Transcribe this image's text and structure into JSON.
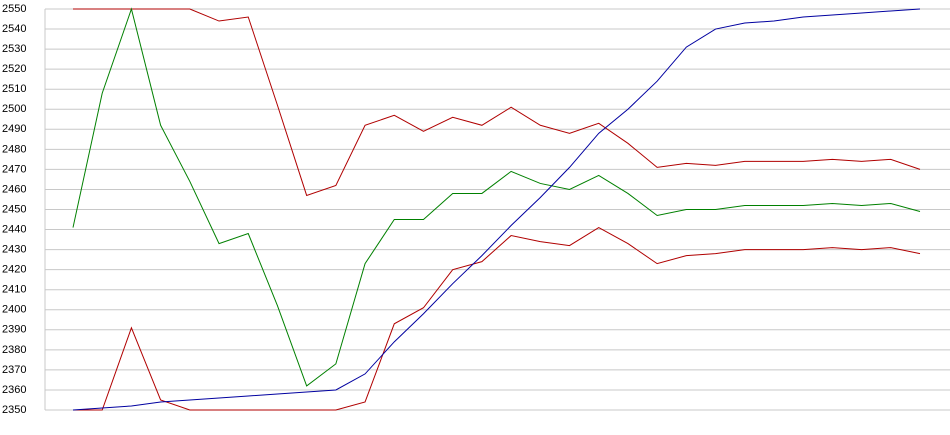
{
  "chart_data": {
    "type": "line",
    "categories": [
      null,
      null,
      null,
      null,
      null,
      null,
      null,
      null,
      null,
      null,
      null,
      null,
      null,
      null,
      null,
      null,
      null,
      null,
      null,
      null,
      null,
      null,
      null,
      null,
      null,
      null,
      null,
      null,
      null,
      null
    ],
    "series": [
      {
        "color": "#b00000",
        "values": [
          2550,
          2550,
          2550,
          2550,
          2550,
          2544,
          2546,
          2502,
          2457,
          2462,
          2492,
          2497,
          2489,
          2496,
          2492,
          2501,
          2492,
          2488,
          2493,
          2483,
          2471,
          2473,
          2472,
          2474,
          2474,
          2474,
          2475,
          2474,
          2475,
          2470
        ]
      },
      {
        "color": "#008000",
        "values": [
          2441,
          2508,
          2550,
          2492,
          2464,
          2433,
          2438,
          2402,
          2362,
          2373,
          2423,
          2445,
          2445,
          2458,
          2458,
          2469,
          2463,
          2460,
          2467,
          2458,
          2447,
          2450,
          2450,
          2452,
          2452,
          2452,
          2453,
          2452,
          2453,
          2449
        ]
      },
      {
        "color": "#b00000",
        "values": [
          2350,
          2350,
          2391,
          2355,
          2350,
          2350,
          2350,
          2350,
          2350,
          2350,
          2354,
          2393,
          2401,
          2420,
          2424,
          2437,
          2434,
          2432,
          2441,
          2433,
          2423,
          2427,
          2428,
          2430,
          2430,
          2430,
          2431,
          2430,
          2431,
          2428
        ]
      },
      {
        "color": "#0000a0",
        "values": [
          2350,
          2351,
          2352,
          2354,
          2355,
          2356,
          2357,
          2358,
          2359,
          2360,
          2368,
          2384,
          2398,
          2413,
          2427,
          2442,
          2456,
          2471,
          2488,
          2500,
          2514,
          2531,
          2540,
          2543,
          2544,
          2546,
          2547,
          2548,
          2549,
          2550
        ]
      }
    ],
    "ylim": [
      2350,
      2550
    ],
    "yticks": [
      2350,
      2360,
      2370,
      2380,
      2390,
      2400,
      2410,
      2420,
      2430,
      2440,
      2450,
      2460,
      2470,
      2480,
      2490,
      2500,
      2510,
      2520,
      2530,
      2540,
      2550
    ],
    "grid": true
  }
}
